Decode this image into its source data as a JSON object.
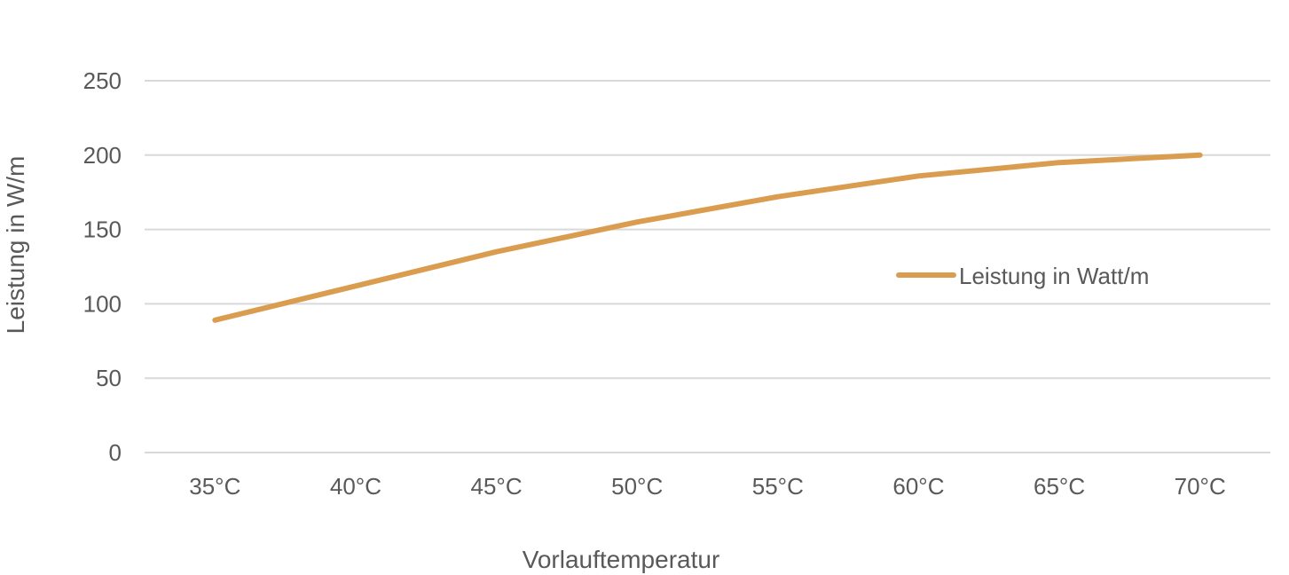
{
  "chart_data": {
    "type": "line",
    "title": "",
    "xlabel": "Vorlauftemperatur",
    "ylabel": "Leistung in W/m",
    "categories": [
      "35°C",
      "40°C",
      "45°C",
      "50°C",
      "55°C",
      "60°C",
      "65°C",
      "70°C"
    ],
    "series": [
      {
        "name": "Leistung in Watt/m",
        "color": "#DA9D4F",
        "values": [
          89,
          112,
          135,
          155,
          172,
          186,
          195,
          200
        ]
      }
    ],
    "ylim": [
      0,
      250
    ],
    "yticks": [
      0,
      50,
      100,
      150,
      200,
      250
    ],
    "grid": true,
    "legend": "right"
  }
}
